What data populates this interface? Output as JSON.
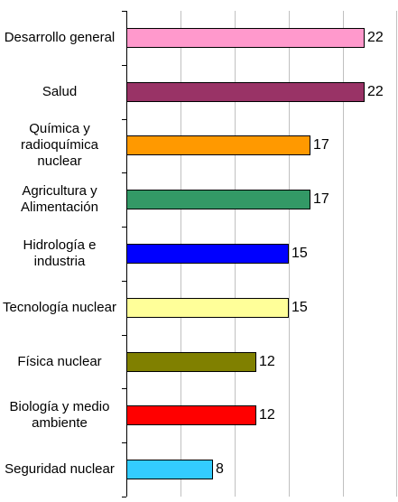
{
  "chart_data": {
    "type": "barh",
    "categories": [
      "Desarrollo general",
      "Salud",
      "Química y radioquímica nuclear",
      "Agricultura y Alimentación",
      "Hidrología e industria",
      "Tecnología nuclear",
      "Física nuclear",
      "Biología y medio ambiente",
      "Seguridad nuclear"
    ],
    "values": [
      22,
      22,
      17,
      17,
      15,
      15,
      12,
      12,
      8
    ],
    "colors": [
      "#ff99cc",
      "#993366",
      "#ff9900",
      "#339966",
      "#0000ff",
      "#ffff99",
      "#808000",
      "#ff0000",
      "#33ccff"
    ],
    "xlim": [
      0,
      25
    ],
    "xticks": [
      0,
      5,
      10,
      15,
      20,
      25
    ],
    "grid": true
  }
}
